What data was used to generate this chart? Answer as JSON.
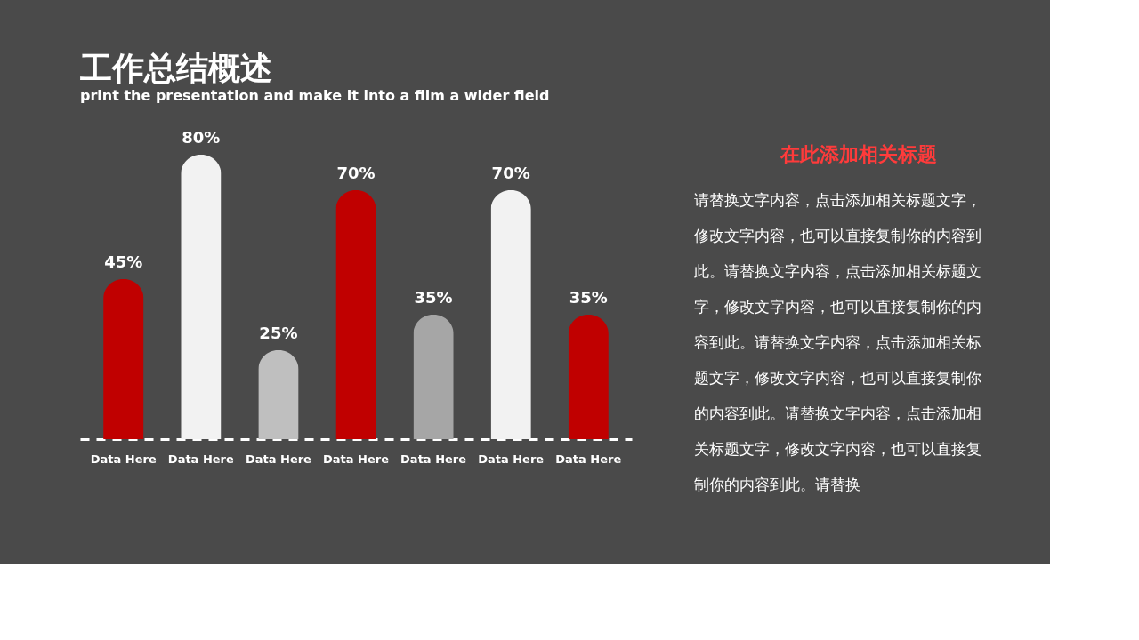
{
  "chart_data": {
    "type": "bar",
    "title": "工作总结概述",
    "subtitle": "print the presentation and make it into a film a wider field",
    "categories": [
      "Data Here",
      "Data Here",
      "Data Here",
      "Data Here",
      "Data Here",
      "Data Here",
      "Data Here"
    ],
    "values": [
      45,
      80,
      25,
      70,
      35,
      70,
      35
    ],
    "value_labels": [
      "45%",
      "80%",
      "25%",
      "70%",
      "35%",
      "70%",
      "35%"
    ],
    "colors": [
      "#c00000",
      "#f2f2f2",
      "#bfbfbf",
      "#c00000",
      "#a6a6a6",
      "#f2f2f2",
      "#c00000"
    ],
    "tick_labels": "x",
    "grid": false,
    "annotations": [
      "在此添加相关标题",
      "请替换文字内容，点击添加相关标题文字，修改文字内容，也可以直接复制你的内容到此。请替换文字内容，点击添加相关标题文字，修改文字内容，也可以直接复制你的内容到此。请替换文字内容，点击添加相关标题文字，修改文字内容，也可以直接复制你的内容到此。请替换文字内容，点击添加相关标题文字，修改文字内容，也可以直接复制你的内容到此。请替换"
    ]
  }
}
